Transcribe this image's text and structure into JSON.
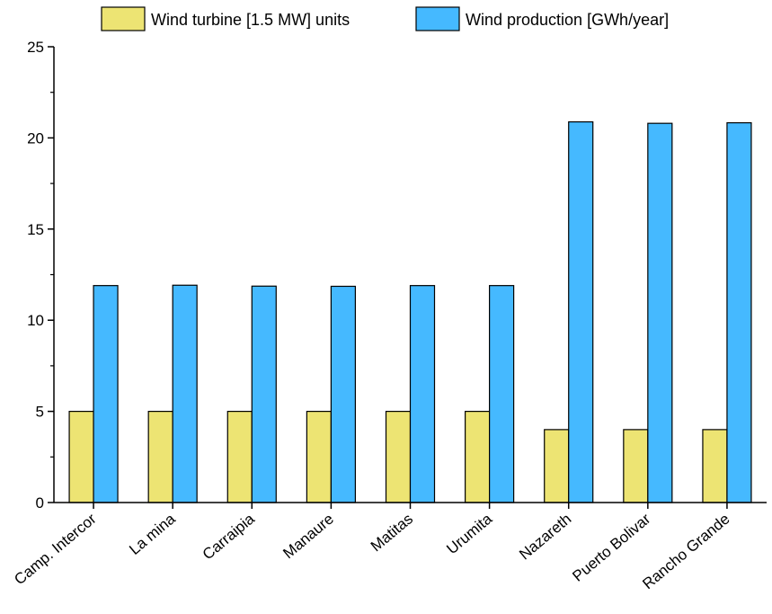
{
  "chart_data": {
    "type": "bar",
    "categories": [
      "Camp. Intercor",
      "La mina",
      "Carraipia",
      "Manaure",
      "Matitas",
      "Urumita",
      "Nazareth",
      "Puerto Bolivar",
      "Rancho Grande"
    ],
    "series": [
      {
        "name": "Wind turbine [1.5 MW] units",
        "color": "#ede473",
        "values": [
          5,
          5,
          5,
          5,
          5,
          5,
          4,
          4,
          4
        ]
      },
      {
        "name": "Wind production [GWh/year]",
        "color": "#45b9ff",
        "values": [
          11.9,
          11.92,
          11.87,
          11.86,
          11.9,
          11.9,
          20.88,
          20.8,
          20.83
        ]
      }
    ],
    "ylim": [
      0,
      25
    ],
    "yticks": [
      0,
      5,
      10,
      15,
      20,
      25
    ],
    "ytick_labels": [
      "0",
      "5",
      "10",
      "15",
      "20",
      "25"
    ],
    "minor_ytick_step": 2.5,
    "grid": false,
    "legend": "top-center",
    "title": "",
    "xlabel": "",
    "ylabel": ""
  }
}
